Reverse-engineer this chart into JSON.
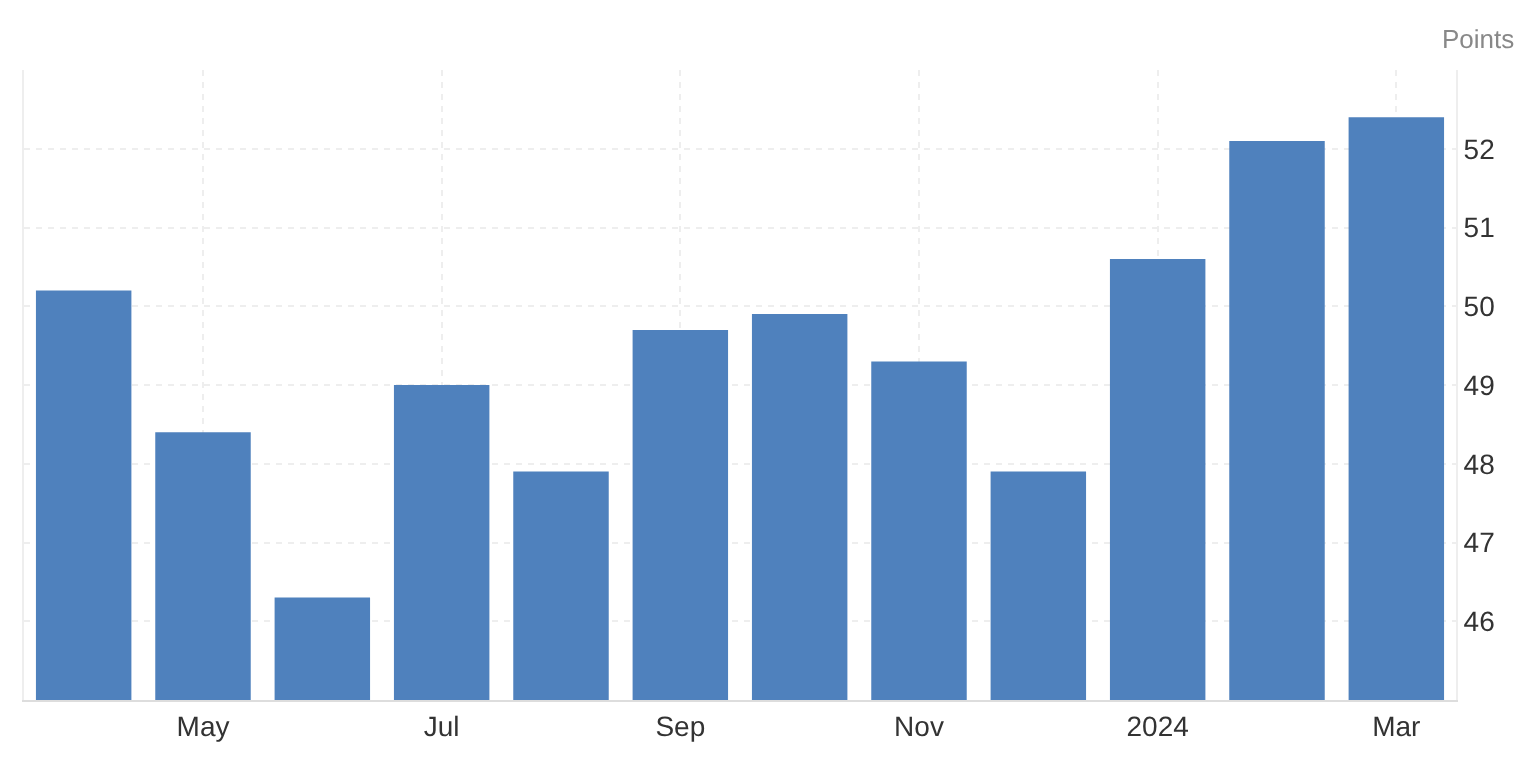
{
  "chart_data": {
    "type": "bar",
    "ylabel": "Points",
    "categories": [
      null,
      "May",
      null,
      "Jul",
      null,
      "Sep",
      null,
      "Nov",
      null,
      "2024",
      null,
      "Mar"
    ],
    "values": [
      50.2,
      48.4,
      46.3,
      49.0,
      47.9,
      49.7,
      49.9,
      49.3,
      47.9,
      50.6,
      52.1,
      52.4
    ],
    "color": "#4f81bd",
    "ylim": [
      45,
      53
    ],
    "yticks": [
      46,
      47,
      48,
      49,
      50,
      51,
      52
    ],
    "grid": true
  }
}
